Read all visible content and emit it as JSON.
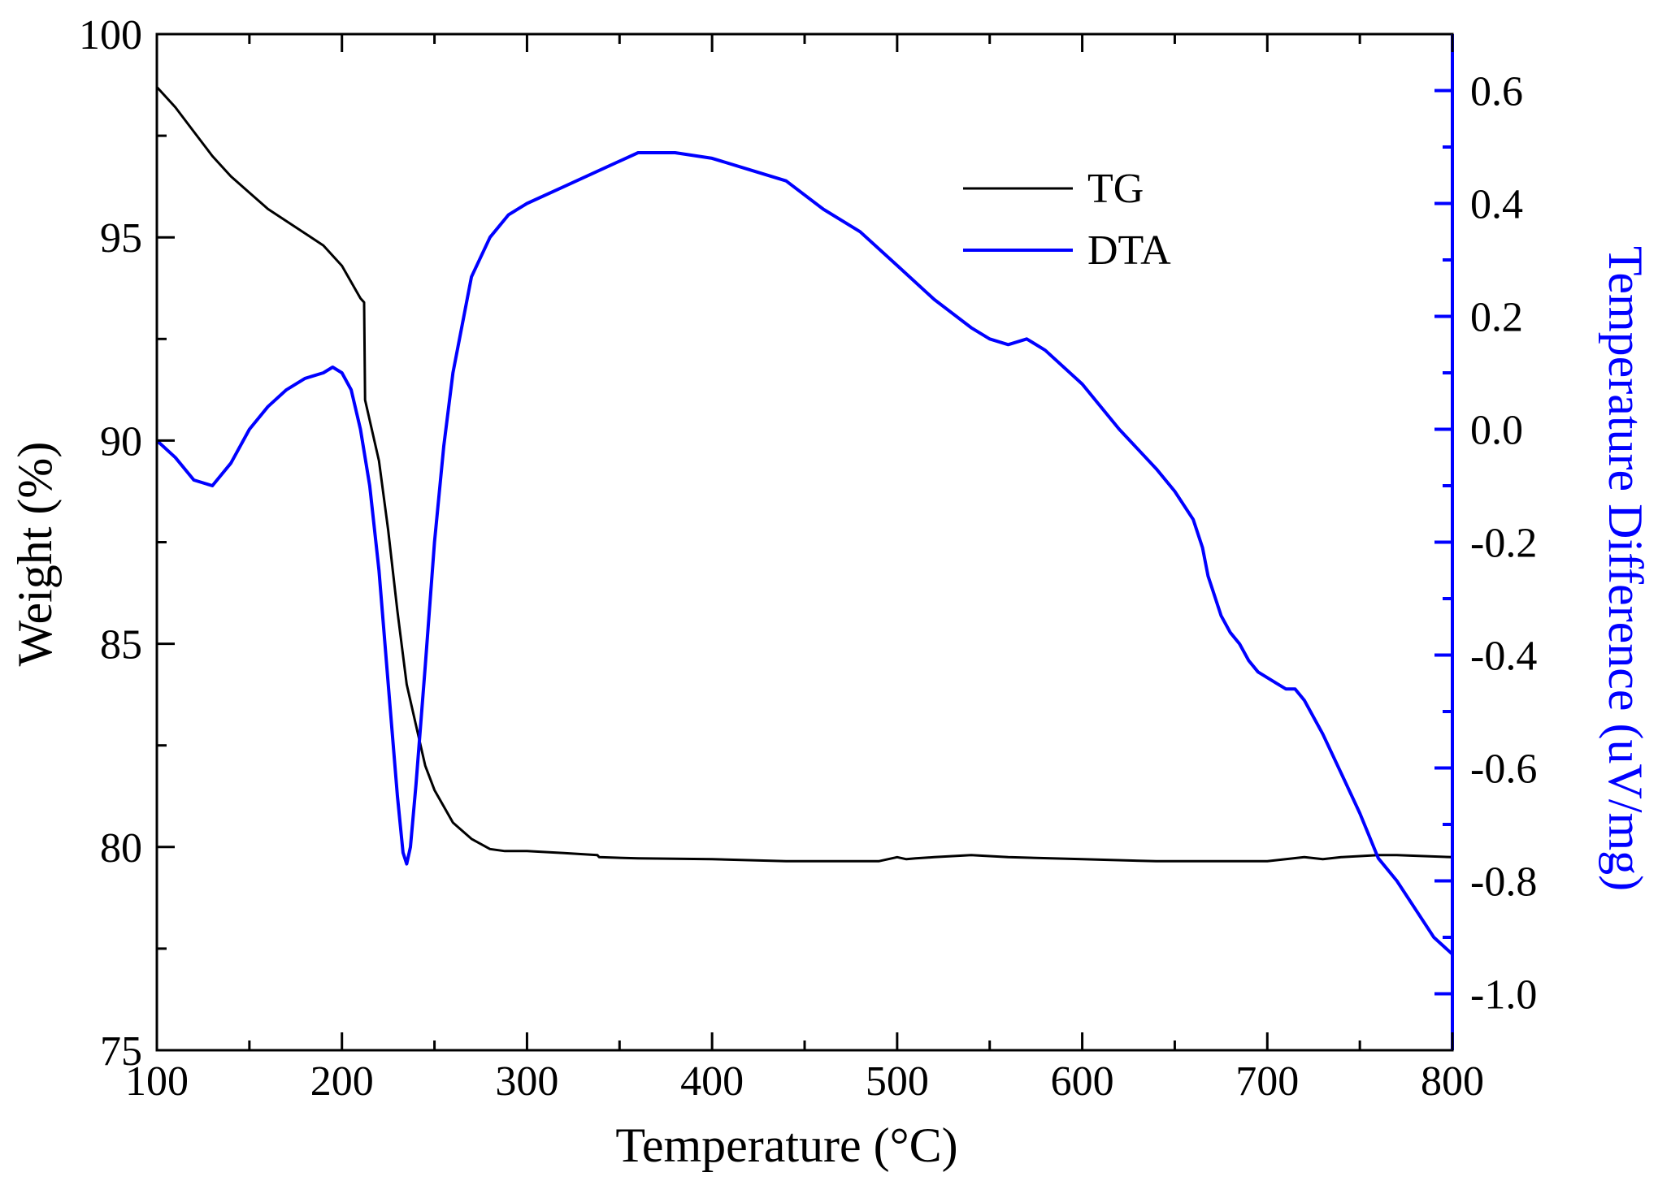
{
  "chart_data": {
    "type": "line",
    "title": "",
    "xlabel": "Temperature (°C)",
    "ylabel_left": "Weight (%)",
    "ylabel_right": "Temperature Difference (uV/mg)",
    "xlim": [
      100,
      800
    ],
    "ylim_left": [
      75,
      100
    ],
    "ylim_right": [
      -1.1,
      0.7
    ],
    "x_ticks": [
      "100",
      "200",
      "300",
      "400",
      "500",
      "600",
      "700",
      "800"
    ],
    "y_left_ticks": [
      "75",
      "80",
      "85",
      "90",
      "95",
      "100"
    ],
    "y_right_ticks": [
      "-1.0",
      "-0.8",
      "-0.6",
      "-0.4",
      "-0.2",
      "0.0",
      "0.2",
      "0.4",
      "0.6"
    ],
    "legend_position": "top-right",
    "colors": {
      "TG": "#000000",
      "DTA": "#0000ff",
      "axis": "#000000",
      "right_axis": "#0000ff"
    },
    "series": [
      {
        "name": "TG",
        "axis": "left",
        "x": [
          100,
          110,
          120,
          130,
          140,
          150,
          160,
          170,
          180,
          190,
          200,
          205,
          210,
          212,
          212.5,
          215,
          220,
          225,
          230,
          235,
          240,
          245,
          250,
          260,
          270,
          280,
          288,
          300,
          320,
          338,
          339,
          360,
          400,
          440,
          490,
          495,
          500,
          505,
          510,
          520,
          540,
          560,
          600,
          640,
          700,
          710,
          720,
          730,
          740,
          760,
          770,
          800
        ],
        "y": [
          98.7,
          98.2,
          97.6,
          97.0,
          96.5,
          96.1,
          95.7,
          95.4,
          95.1,
          94.8,
          94.3,
          93.9,
          93.5,
          93.4,
          91.0,
          90.5,
          89.5,
          87.8,
          85.8,
          84.0,
          83.0,
          82.0,
          81.4,
          80.6,
          80.2,
          79.95,
          79.9,
          79.9,
          79.85,
          79.8,
          79.75,
          79.72,
          79.7,
          79.65,
          79.65,
          79.7,
          79.75,
          79.7,
          79.72,
          79.75,
          79.8,
          79.75,
          79.7,
          79.65,
          79.65,
          79.7,
          79.75,
          79.7,
          79.75,
          79.8,
          79.8,
          79.75
        ]
      },
      {
        "name": "DTA",
        "axis": "right",
        "x": [
          100,
          110,
          120,
          130,
          140,
          150,
          160,
          170,
          180,
          190,
          195,
          200,
          205,
          210,
          215,
          220,
          225,
          230,
          233,
          235,
          237,
          240,
          245,
          250,
          255,
          260,
          270,
          280,
          290,
          300,
          320,
          340,
          360,
          380,
          400,
          420,
          440,
          460,
          480,
          500,
          520,
          540,
          550,
          560,
          570,
          580,
          600,
          620,
          640,
          650,
          660,
          665,
          668,
          670,
          675,
          680,
          685,
          690,
          695,
          700,
          705,
          710,
          715,
          720,
          730,
          740,
          750,
          755,
          760,
          770,
          780,
          790,
          800
        ],
        "y": [
          -0.02,
          -0.05,
          -0.09,
          -0.1,
          -0.06,
          0.0,
          0.04,
          0.07,
          0.09,
          0.1,
          0.11,
          0.1,
          0.07,
          0.0,
          -0.1,
          -0.25,
          -0.45,
          -0.65,
          -0.75,
          -0.77,
          -0.74,
          -0.63,
          -0.42,
          -0.2,
          -0.03,
          0.1,
          0.27,
          0.34,
          0.38,
          0.4,
          0.43,
          0.46,
          0.49,
          0.49,
          0.48,
          0.46,
          0.44,
          0.39,
          0.35,
          0.29,
          0.23,
          0.18,
          0.16,
          0.15,
          0.16,
          0.14,
          0.08,
          0.0,
          -0.07,
          -0.11,
          -0.16,
          -0.21,
          -0.26,
          -0.28,
          -0.33,
          -0.36,
          -0.38,
          -0.41,
          -0.43,
          -0.44,
          -0.45,
          -0.46,
          -0.46,
          -0.48,
          -0.54,
          -0.61,
          -0.68,
          -0.72,
          -0.76,
          -0.8,
          -0.85,
          -0.9,
          -0.93
        ]
      }
    ]
  }
}
